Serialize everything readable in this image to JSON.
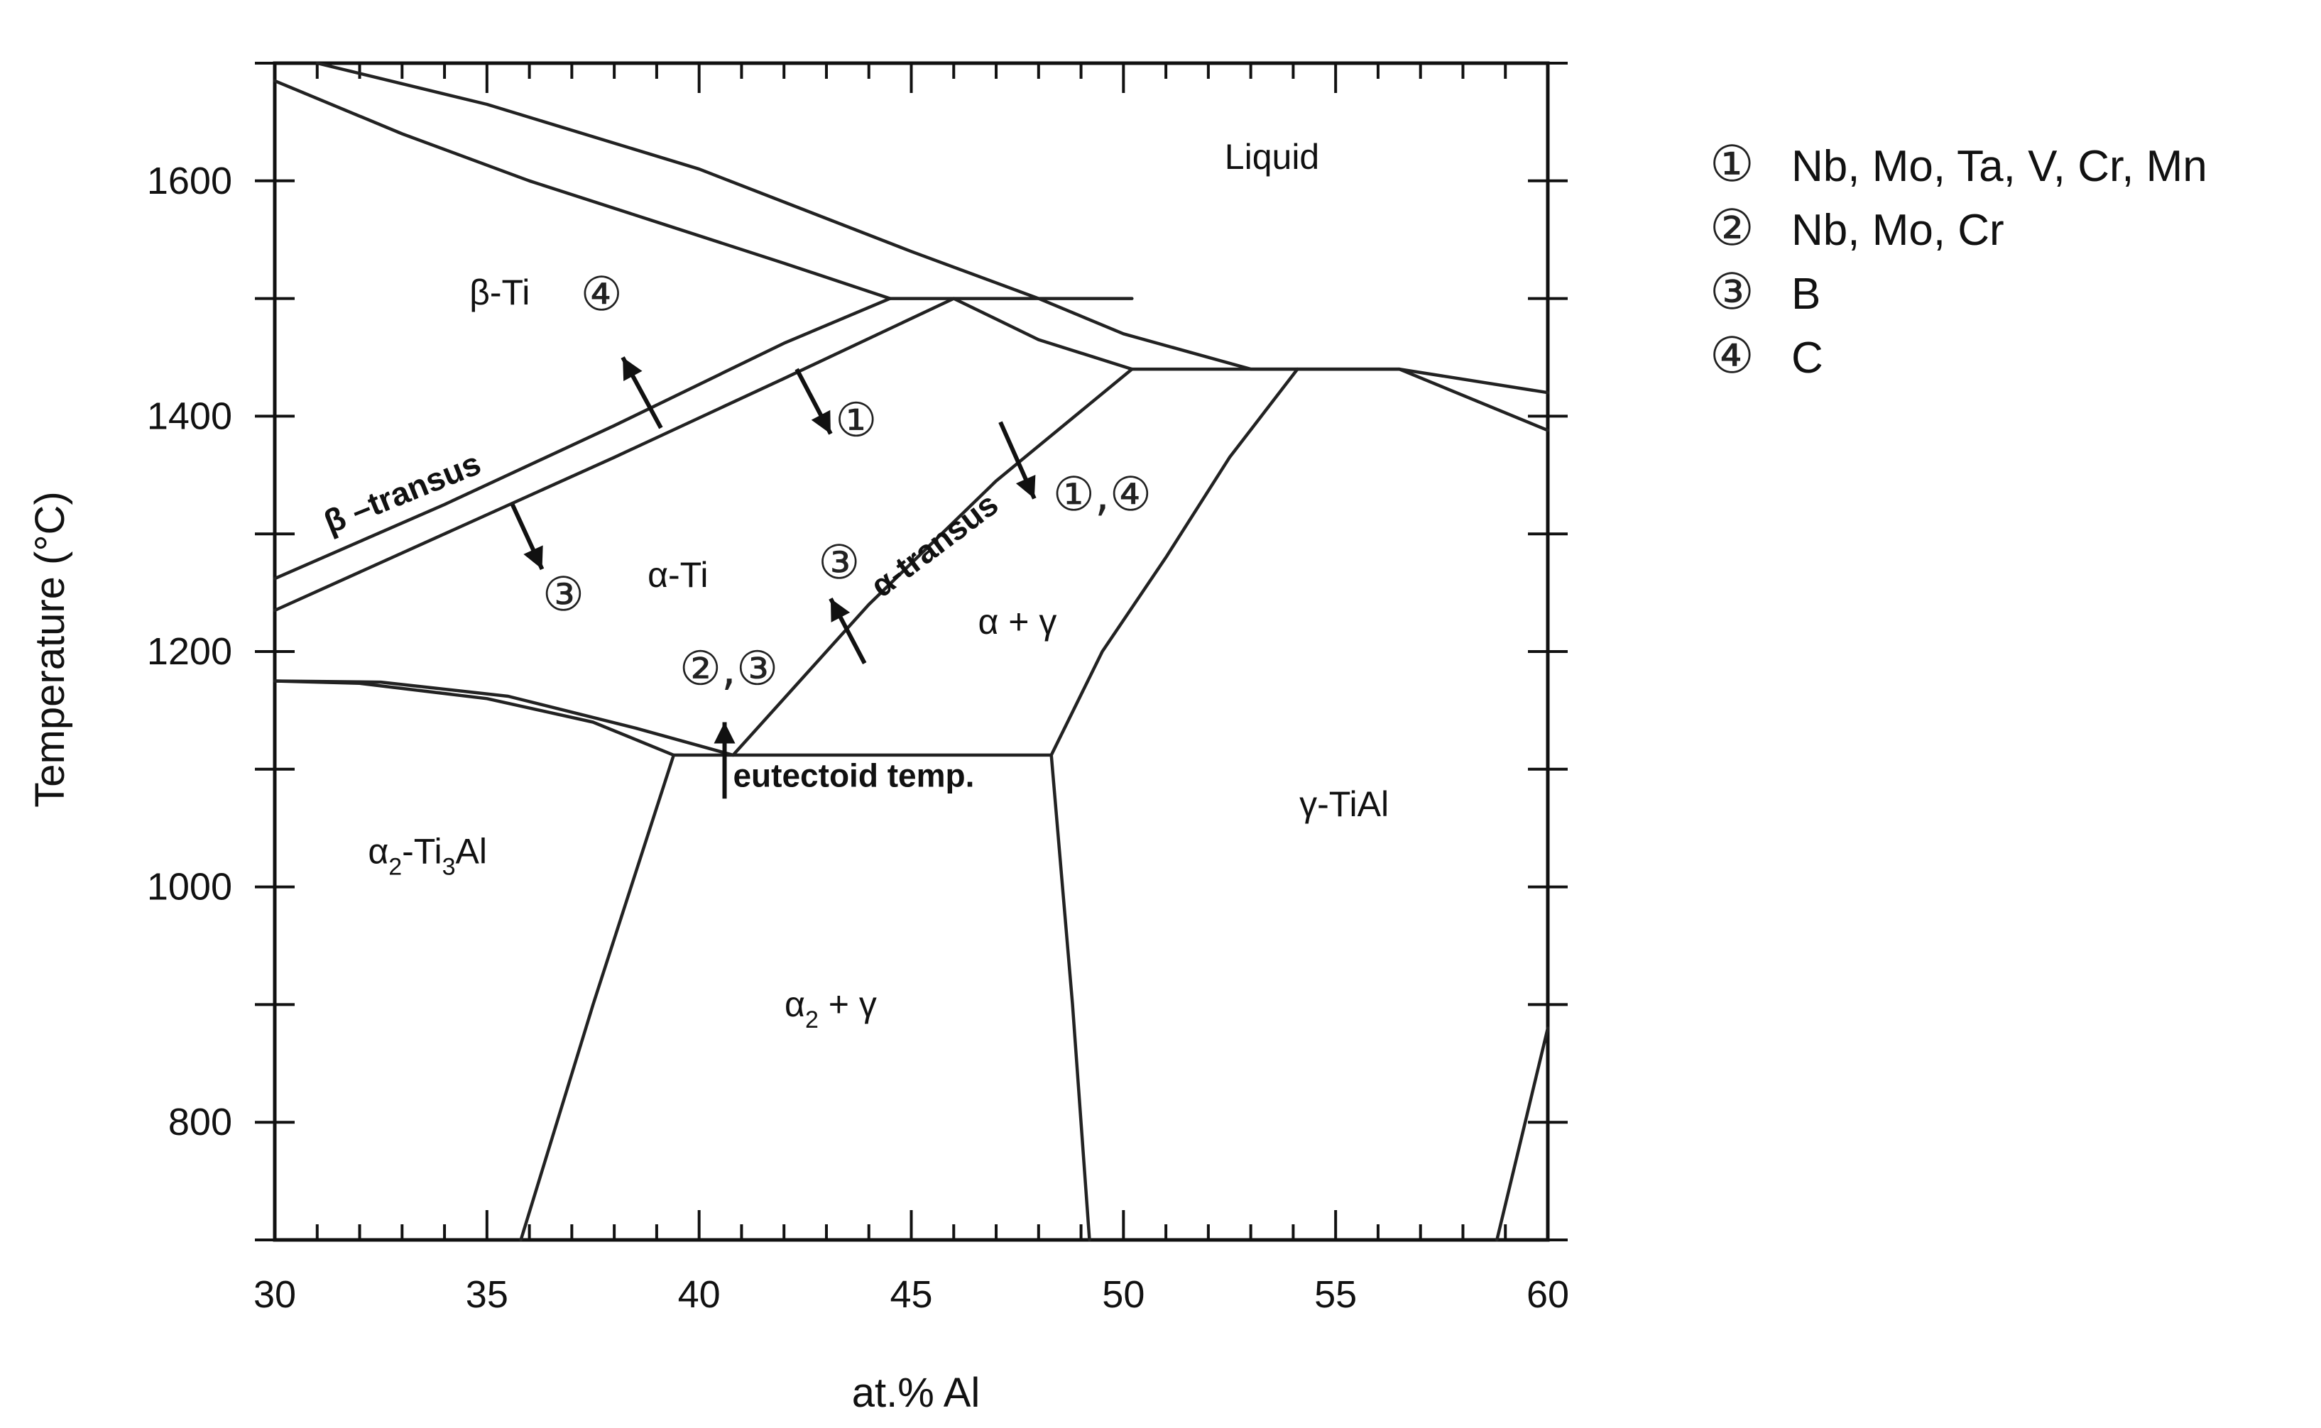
{
  "chart_data": {
    "type": "phase-diagram",
    "xlabel": "at.% Al",
    "ylabel": "Temperature (°C)",
    "xlim": [
      30,
      60
    ],
    "ylim": [
      700,
      1700
    ],
    "x_ticks": [
      30,
      35,
      40,
      45,
      50,
      55,
      60
    ],
    "y_ticks": [
      800,
      1000,
      1200,
      1400,
      1600
    ],
    "grid": false,
    "legend_position": "right",
    "phase_boundaries": [
      {
        "points": [
          [
            31,
            1700
          ],
          [
            35,
            1665
          ],
          [
            40,
            1610
          ],
          [
            45,
            1540
          ],
          [
            48,
            1500
          ],
          [
            50,
            1470
          ],
          [
            53,
            1440
          ],
          [
            56.5,
            1440
          ],
          [
            60,
            1420
          ]
        ]
      },
      {
        "points": [
          [
            30,
            1685
          ],
          [
            33,
            1640
          ],
          [
            36,
            1600
          ],
          [
            39,
            1565
          ],
          [
            42,
            1530
          ],
          [
            44.5,
            1500
          ]
        ]
      },
      {
        "points": [
          [
            44.5,
            1500
          ],
          [
            50.2,
            1500
          ]
        ]
      },
      {
        "points": [
          [
            30,
            1262
          ],
          [
            34,
            1325
          ],
          [
            38,
            1392
          ],
          [
            42,
            1462
          ],
          [
            44.5,
            1500
          ]
        ]
      },
      {
        "points": [
          [
            30,
            1235
          ],
          [
            34,
            1300
          ],
          [
            38,
            1365
          ],
          [
            42,
            1432
          ],
          [
            46,
            1500
          ]
        ]
      },
      {
        "points": [
          [
            46,
            1500
          ],
          [
            48,
            1465
          ],
          [
            50.2,
            1440
          ]
        ]
      },
      {
        "points": [
          [
            50.2,
            1440
          ],
          [
            56.5,
            1440
          ]
        ]
      },
      {
        "points": [
          [
            56.5,
            1440
          ],
          [
            60,
            1388
          ]
        ]
      },
      {
        "points": [
          [
            40.8,
            1112
          ],
          [
            44,
            1240
          ],
          [
            47,
            1345
          ],
          [
            50.2,
            1440
          ]
        ]
      },
      {
        "points": [
          [
            48.3,
            1112
          ],
          [
            49.5,
            1200
          ],
          [
            51,
            1280
          ],
          [
            52.5,
            1365
          ],
          [
            54.1,
            1440
          ]
        ]
      },
      {
        "points": [
          [
            39.4,
            1112
          ],
          [
            48.3,
            1112
          ]
        ]
      },
      {
        "points": [
          [
            30,
            1175
          ],
          [
            32,
            1173
          ],
          [
            35,
            1160
          ],
          [
            37.5,
            1140
          ],
          [
            39.4,
            1112
          ]
        ]
      },
      {
        "points": [
          [
            30,
            1175
          ],
          [
            32.5,
            1174
          ],
          [
            35.5,
            1162
          ],
          [
            38.5,
            1135
          ],
          [
            40.8,
            1112
          ]
        ]
      },
      {
        "points": [
          [
            39.4,
            1112
          ],
          [
            37.5,
            900
          ],
          [
            35.8,
            700
          ]
        ]
      },
      {
        "points": [
          [
            48.3,
            1112
          ],
          [
            48.8,
            900
          ],
          [
            49.2,
            700
          ]
        ]
      },
      {
        "points": [
          [
            58.8,
            700
          ],
          [
            60,
            880
          ]
        ]
      }
    ],
    "phase_labels": [
      {
        "text": "Liquid",
        "x": 53.5,
        "y": 1610
      },
      {
        "text": "β-Ti",
        "x": 35.3,
        "y": 1495
      },
      {
        "text": "α-Ti",
        "x": 39.5,
        "y": 1255
      },
      {
        "text": "α + γ",
        "x": 47.5,
        "y": 1215
      },
      {
        "text": "γ-TiAl",
        "x": 55.2,
        "y": 1060
      },
      {
        "text": "α",
        "sub": "2",
        "text_after": "-Ti",
        "sub2": "3",
        "text_after2": "Al",
        "x": 33.6,
        "y": 1020
      },
      {
        "text": "α",
        "sub": "2",
        "text_after": " + γ",
        "x": 43.1,
        "y": 890
      }
    ],
    "annotations": [
      {
        "text": "β –transus",
        "x": 31.3,
        "y": 1300,
        "angle_deg": -22
      },
      {
        "text": "α-transus",
        "x": 44.3,
        "y": 1245,
        "angle_deg": -37
      },
      {
        "text": "eutectoid temp.",
        "x": 40.8,
        "y": 1085
      }
    ],
    "effect_arrows": [
      {
        "marker": "④",
        "x": 37.7,
        "y": 1490,
        "arrow_from": [
          39.1,
          1390
        ],
        "arrow_to": [
          38.2,
          1450
        ]
      },
      {
        "marker": "①",
        "x": 43.7,
        "y": 1383,
        "arrow_from": [
          42.3,
          1440
        ],
        "arrow_to": [
          43.1,
          1385
        ]
      },
      {
        "marker": "①,④",
        "x": 49.5,
        "y": 1320,
        "arrow_from": [
          47.1,
          1395
        ],
        "arrow_to": [
          47.9,
          1330
        ]
      },
      {
        "marker": "③",
        "x": 36.8,
        "y": 1235,
        "arrow_from": [
          35.6,
          1325
        ],
        "arrow_to": [
          36.3,
          1270
        ]
      },
      {
        "marker": "③",
        "x": 43.3,
        "y": 1262,
        "arrow_from": [
          43.9,
          1190
        ],
        "arrow_to": [
          43.1,
          1245
        ]
      },
      {
        "marker": "②,③",
        "x": 40.7,
        "y": 1172,
        "arrow_from": [
          40.6,
          1075
        ],
        "arrow_to": [
          40.6,
          1140
        ]
      }
    ]
  },
  "legend": [
    {
      "marker": "①",
      "label": "Nb, Mo, Ta, V, Cr, Mn"
    },
    {
      "marker": "②",
      "label": "Nb, Mo, Cr"
    },
    {
      "marker": "③",
      "label": "B"
    },
    {
      "marker": "④",
      "label": "C"
    }
  ],
  "colors": {
    "line": "#222222",
    "text": "#111111",
    "background": "#ffffff"
  }
}
